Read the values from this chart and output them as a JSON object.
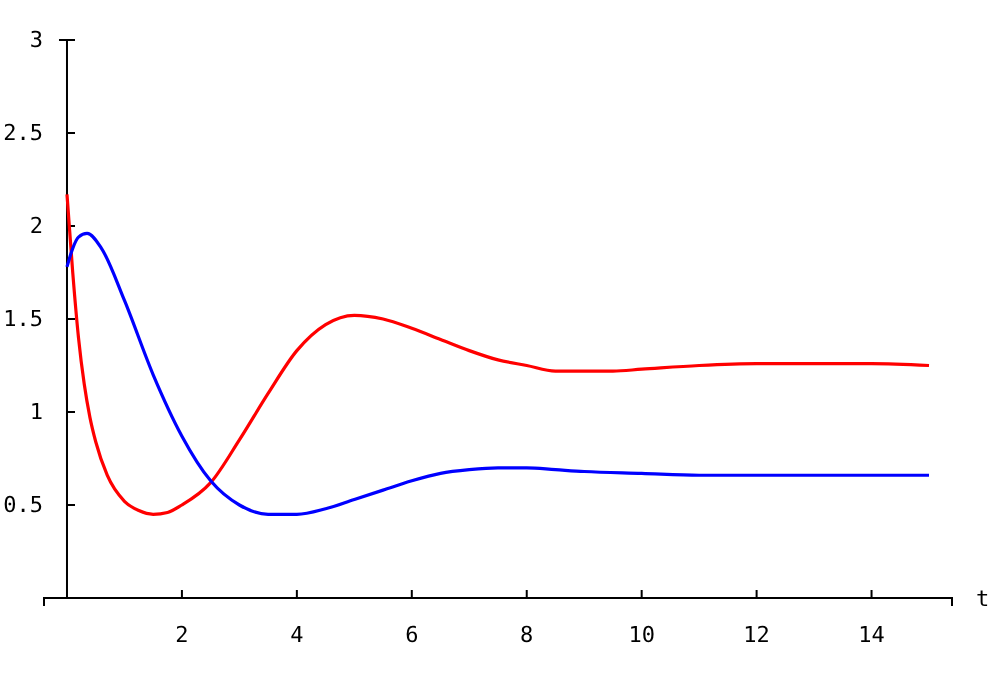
{
  "chart_data": {
    "type": "line",
    "xlabel": "t",
    "xlim": [
      -0.4,
      15.4
    ],
    "ylim": [
      0,
      3
    ],
    "xticks": [
      2,
      4,
      6,
      8,
      10,
      12,
      14
    ],
    "yticks": [
      0.5,
      1,
      1.5,
      2,
      2.5,
      3
    ],
    "marker": "none",
    "line_style": "solid",
    "series": [
      {
        "color": "#ff0000",
        "x": [
          0,
          0.1,
          0.2,
          0.3,
          0.4,
          0.5,
          0.7,
          1,
          1.25,
          1.5,
          1.75,
          2,
          2.5,
          3,
          3.5,
          4,
          4.5,
          5,
          5.5,
          6,
          6.5,
          7,
          7.5,
          8,
          8.5,
          9,
          9.5,
          10,
          11,
          12,
          13,
          14,
          15
        ],
        "values": [
          2.17,
          1.75,
          1.4,
          1.15,
          0.97,
          0.84,
          0.66,
          0.52,
          0.47,
          0.45,
          0.46,
          0.5,
          0.62,
          0.85,
          1.1,
          1.33,
          1.47,
          1.52,
          1.5,
          1.45,
          1.39,
          1.33,
          1.28,
          1.25,
          1.22,
          1.22,
          1.22,
          1.23,
          1.25,
          1.26,
          1.26,
          1.26,
          1.25
        ]
      },
      {
        "color": "#0000ff",
        "x": [
          0,
          0.1,
          0.2,
          0.35,
          0.6,
          1,
          1.5,
          2,
          2.5,
          3,
          3.5,
          4,
          4.5,
          5,
          5.5,
          6,
          6.5,
          7,
          7.5,
          8,
          8.5,
          9,
          10,
          11,
          12,
          13,
          14,
          15
        ],
        "values": [
          1.78,
          1.88,
          1.94,
          1.96,
          1.88,
          1.6,
          1.2,
          0.87,
          0.63,
          0.5,
          0.45,
          0.45,
          0.48,
          0.53,
          0.58,
          0.63,
          0.67,
          0.69,
          0.7,
          0.7,
          0.69,
          0.68,
          0.67,
          0.66,
          0.66,
          0.66,
          0.66,
          0.66
        ]
      }
    ]
  }
}
